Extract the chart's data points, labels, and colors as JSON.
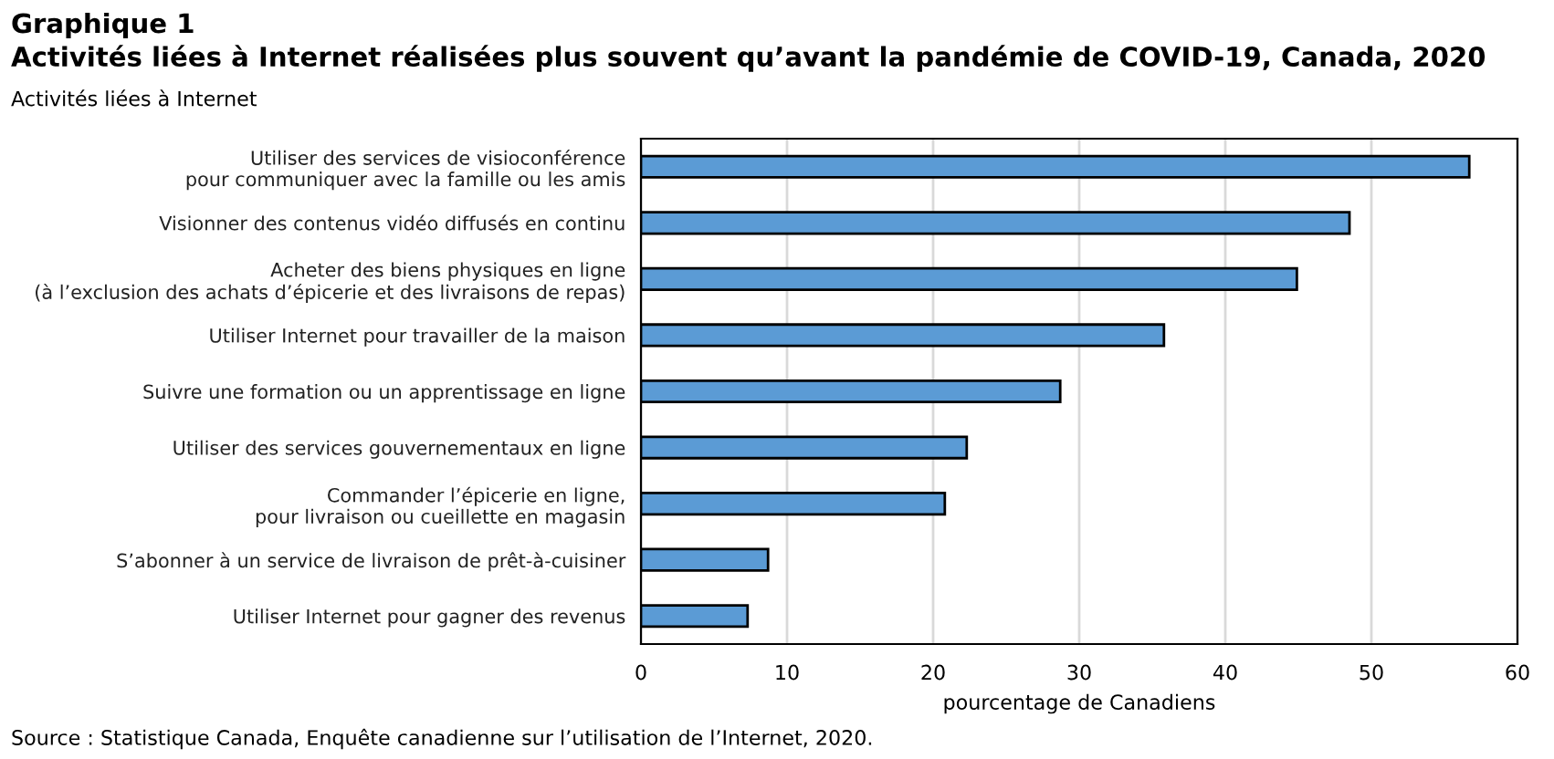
{
  "chart_data": {
    "type": "bar",
    "orientation": "horizontal",
    "title": "Graphique 1",
    "subtitle": "Activités liées à Internet réalisées plus souvent qu’avant la pandémie de COVID-19, Canada, 2020",
    "ylabel": "Activités liées à Internet",
    "xlabel": "pourcentage de Canadiens",
    "categories": [
      "Utiliser des services de visioconférence\npour communiquer avec la famille ou les amis",
      "Visionner des contenus vidéo diffusés en continu",
      "Acheter des biens physiques en ligne\n(à l’exclusion des achats d’épicerie et des livraisons de repas)",
      "Utiliser Internet pour travailler de la maison",
      "Suivre une formation ou un apprentissage en ligne",
      "Utiliser des services gouvernementaux en ligne",
      "Commander l’épicerie en ligne,\npour livraison ou cueillette en magasin",
      "S’abonner à un service de livraison de prêt-à-cuisiner",
      "Utiliser Internet pour gagner des revenus"
    ],
    "values": [
      56.7,
      48.5,
      44.9,
      35.8,
      28.7,
      22.3,
      20.8,
      8.7,
      7.3
    ],
    "color": "#5b9bd5",
    "xlim": [
      0,
      60
    ],
    "xticks": [
      0,
      10,
      20,
      30,
      40,
      50,
      60
    ],
    "grid": "x",
    "legend": false,
    "annotations": [
      "Source : Statistique Canada, Enquête canadienne sur l’utilisation de l’Internet, 2020."
    ]
  }
}
